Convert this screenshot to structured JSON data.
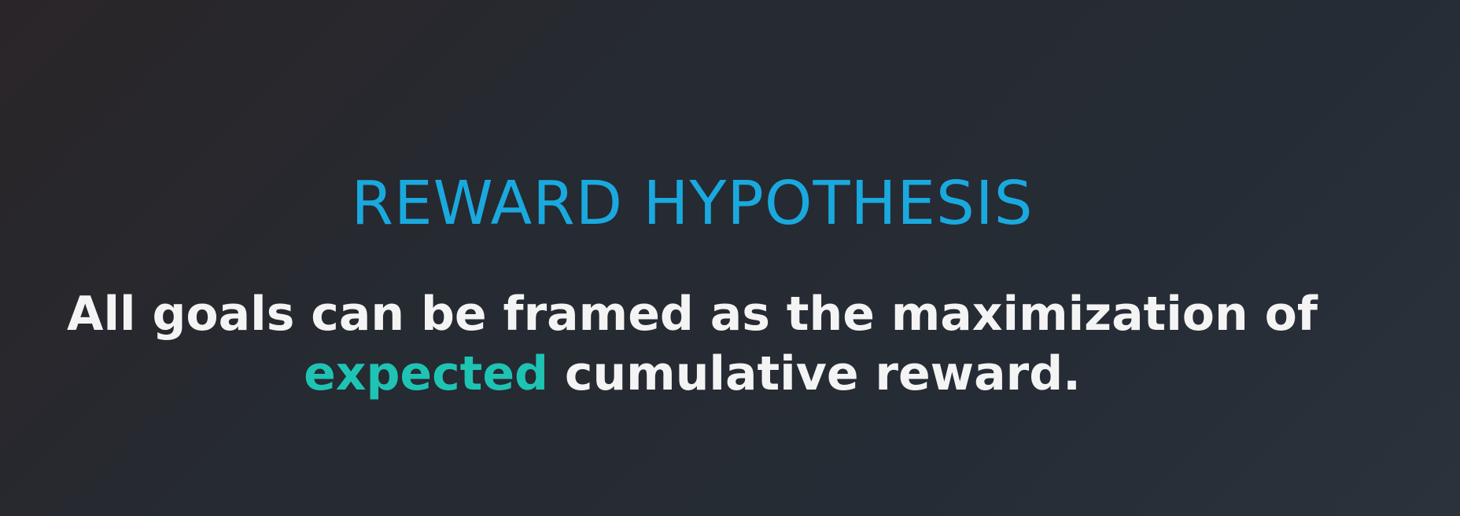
{
  "slide": {
    "title": "REWARD HYPOTHESIS",
    "statement": {
      "line1": "All goals can be framed as the maximization of",
      "highlight": "expected",
      "line2_rest": " cumulative reward."
    },
    "colors": {
      "title": "#1aa9de",
      "highlight": "#1fc3b4",
      "text": "#f4f4f4"
    }
  }
}
